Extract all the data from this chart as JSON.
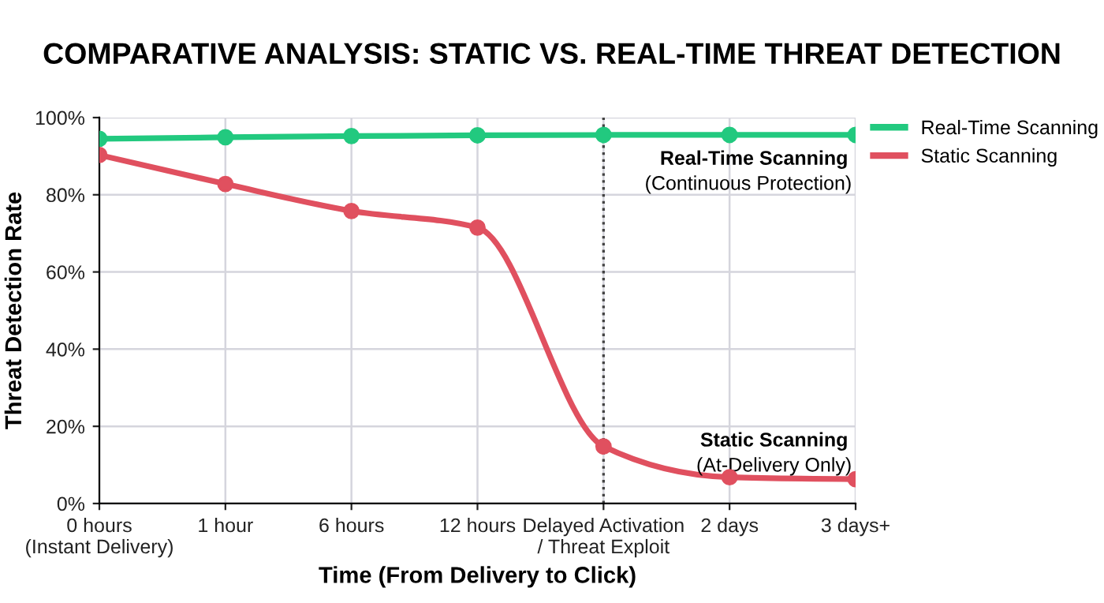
{
  "chart_data": {
    "type": "line",
    "title": "COMPARATIVE ANALYSIS: STATIC VS. REAL-TIME THREAT DETECTION",
    "xlabel": "Time (From Delivery to Click)",
    "ylabel": "Threat Detection Rate",
    "categories": [
      "0 hours\n(Instant Delivery)",
      "1 hour",
      "6 hours",
      "12 hours",
      "Delayed Activation\n/ Threat Exploit",
      "2 days",
      "3 days+"
    ],
    "series": [
      {
        "name": "Real-Time Scanning",
        "color": "#22c97f",
        "values": [
          94.5,
          94.9,
          95.2,
          95.4,
          95.5,
          95.5,
          95.5
        ]
      },
      {
        "name": "Static Scanning",
        "color": "#e0505f",
        "values": [
          90.3,
          82.8,
          75.8,
          71.5,
          14.8,
          6.8,
          6.3
        ]
      }
    ],
    "ylim": [
      0,
      100
    ],
    "yticks": [
      {
        "value": 0,
        "label": "0%"
      },
      {
        "value": 20,
        "label": "20%"
      },
      {
        "value": 40,
        "label": "40%"
      },
      {
        "value": 60,
        "label": "60%"
      },
      {
        "value": 80,
        "label": "80%"
      },
      {
        "value": 100,
        "label": "100%"
      }
    ],
    "ref_lines": [
      {
        "axis": "x",
        "value": "Delayed Activation\n/ Threat Exploit",
        "color": "#444444",
        "line_style": "dotted"
      }
    ],
    "annotations": [
      "Real-Time Scanning\n(Continuous Protection)",
      "Static Scanning\n(At-Delivery Only)"
    ],
    "grid": true,
    "legend": "top right",
    "marker": "circle",
    "line_style": "solid"
  }
}
